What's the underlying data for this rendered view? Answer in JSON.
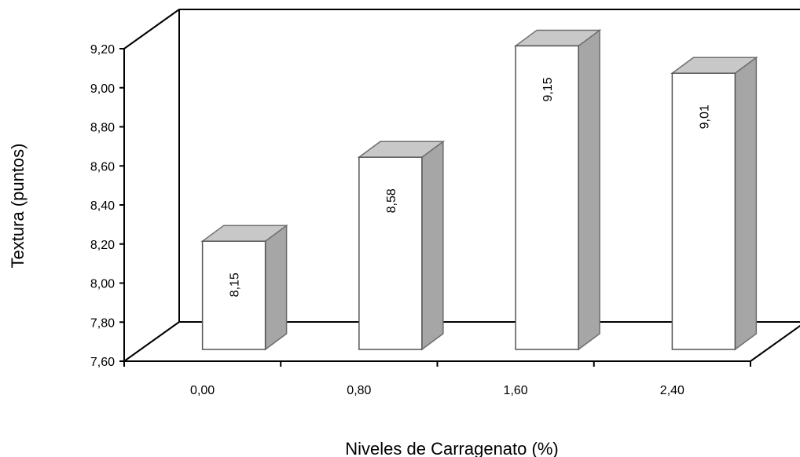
{
  "chart_data": {
    "type": "bar",
    "style": "3d-column",
    "title": "",
    "xlabel": "Niveles de Carragenato (%)",
    "ylabel": "Textura (puntos)",
    "categories": [
      "0,00",
      "0,80",
      "1,60",
      "2,40"
    ],
    "series": [
      {
        "values": [
          8.15,
          8.58,
          9.15,
          9.01
        ],
        "labels": [
          "8,15",
          "8,58",
          "9,15",
          "9,01"
        ]
      }
    ],
    "ylim": [
      7.6,
      9.2
    ],
    "yticks": [
      "7,60",
      "7,80",
      "8,00",
      "8,20",
      "8,40",
      "8,60",
      "8,80",
      "9,00",
      "9,20"
    ],
    "grid": false,
    "legend": "none",
    "colors": {
      "bar_front": "#ffffff",
      "bar_side": "#a6a6a6",
      "bar_top": "#c8c8c8",
      "axis": "#000000"
    }
  }
}
